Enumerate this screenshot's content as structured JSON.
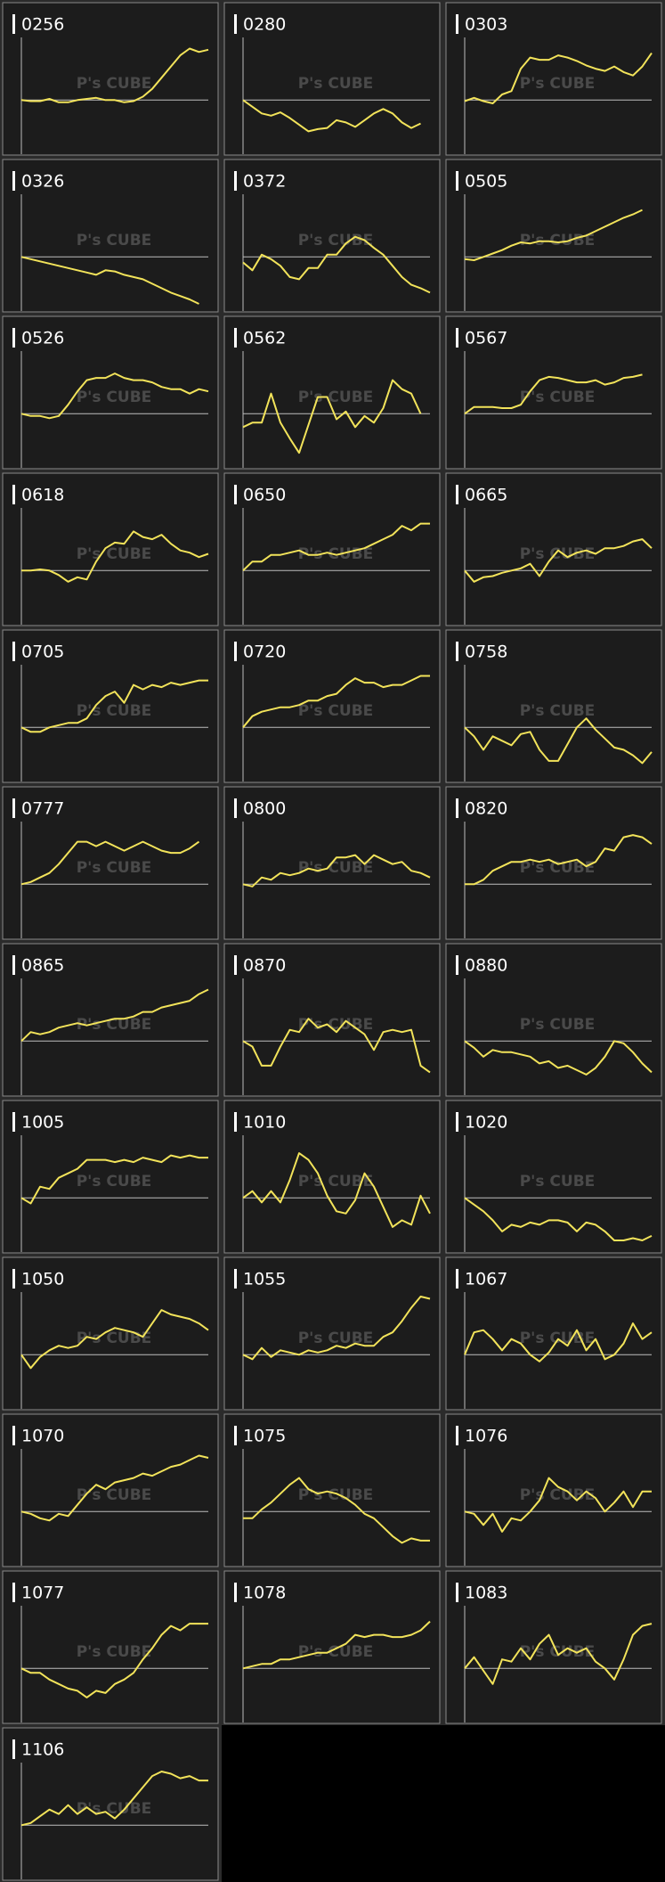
{
  "watermark": "P's CUBE",
  "chart_data": [
    {
      "type": "line",
      "title": "0256",
      "color": "#f2e35a",
      "xlim": [
        0,
        20
      ],
      "ylim": [
        -46,
        56
      ],
      "values": [
        0,
        -1,
        -1,
        1,
        -2,
        -2,
        0,
        1,
        2,
        0,
        0,
        -2,
        -1,
        3,
        10,
        20,
        30,
        40,
        46,
        43,
        45
      ]
    },
    {
      "type": "line",
      "title": "0280",
      "color": "#f2e35a",
      "xlim": [
        0,
        20
      ],
      "ylim": [
        -46,
        56
      ],
      "values": [
        0,
        -6,
        -12,
        -14,
        -11,
        -16,
        -22,
        -28,
        -26,
        -25,
        -18,
        -20,
        -24,
        -18,
        -12,
        -8,
        -12,
        -20,
        -25,
        -21
      ]
    },
    {
      "type": "line",
      "title": "0303",
      "color": "#f2e35a",
      "xlim": [
        0,
        20
      ],
      "ylim": [
        -46,
        56
      ],
      "values": [
        -1,
        2,
        -1,
        -3,
        5,
        8,
        28,
        38,
        36,
        36,
        40,
        38,
        35,
        31,
        28,
        26,
        30,
        25,
        22,
        30,
        42
      ]
    },
    {
      "type": "line",
      "title": "0326",
      "color": "#f2e35a",
      "xlim": [
        0,
        20
      ],
      "ylim": [
        -46,
        56
      ],
      "values": [
        0,
        -2,
        -4,
        -6,
        -8,
        -10,
        -12,
        -14,
        -16,
        -12,
        -13,
        -16,
        -18,
        -20,
        -24,
        -28,
        -32,
        -35,
        -38,
        -42
      ]
    },
    {
      "type": "line",
      "title": "0372",
      "color": "#f2e35a",
      "xlim": [
        0,
        20
      ],
      "ylim": [
        -46,
        56
      ],
      "values": [
        -5,
        -12,
        2,
        -2,
        -8,
        -18,
        -20,
        -10,
        -10,
        2,
        2,
        12,
        18,
        15,
        8,
        2,
        -8,
        -18,
        -25,
        -28,
        -32
      ]
    },
    {
      "type": "line",
      "title": "0505",
      "color": "#f2e35a",
      "xlim": [
        0,
        20
      ],
      "ylim": [
        -46,
        56
      ],
      "values": [
        -2,
        -3,
        0,
        3,
        6,
        10,
        13,
        12,
        14,
        14,
        13,
        14,
        17,
        19,
        23,
        27,
        31,
        35,
        38,
        42
      ]
    },
    {
      "type": "line",
      "title": "0526",
      "color": "#f2e35a",
      "xlim": [
        0,
        20
      ],
      "ylim": [
        -46,
        56
      ],
      "values": [
        0,
        -2,
        -2,
        -4,
        -2,
        8,
        20,
        30,
        32,
        32,
        36,
        32,
        30,
        30,
        28,
        24,
        22,
        22,
        18,
        22,
        20
      ]
    },
    {
      "type": "line",
      "title": "0562",
      "color": "#f2e35a",
      "xlim": [
        0,
        20
      ],
      "ylim": [
        -46,
        56
      ],
      "values": [
        -12,
        -8,
        -8,
        18,
        -8,
        -22,
        -35,
        -10,
        15,
        15,
        -5,
        2,
        -12,
        -2,
        -8,
        5,
        30,
        22,
        18,
        0
      ]
    },
    {
      "type": "line",
      "title": "0567",
      "color": "#f2e35a",
      "xlim": [
        0,
        20
      ],
      "ylim": [
        -46,
        56
      ],
      "values": [
        0,
        6,
        6,
        6,
        5,
        5,
        8,
        20,
        30,
        33,
        32,
        30,
        28,
        28,
        30,
        26,
        28,
        32,
        33,
        35
      ]
    },
    {
      "type": "line",
      "title": "0618",
      "color": "#f2e35a",
      "xlim": [
        0,
        20
      ],
      "ylim": [
        -46,
        56
      ],
      "values": [
        0,
        0,
        1,
        0,
        -4,
        -10,
        -6,
        -8,
        8,
        20,
        25,
        24,
        35,
        30,
        28,
        32,
        24,
        18,
        16,
        12,
        15
      ]
    },
    {
      "type": "line",
      "title": "0650",
      "color": "#f2e35a",
      "xlim": [
        0,
        20
      ],
      "ylim": [
        -46,
        56
      ],
      "values": [
        0,
        8,
        8,
        14,
        14,
        16,
        18,
        14,
        14,
        16,
        14,
        16,
        18,
        20,
        24,
        28,
        32,
        40,
        36,
        42,
        42
      ]
    },
    {
      "type": "line",
      "title": "0665",
      "color": "#f2e35a",
      "xlim": [
        0,
        20
      ],
      "ylim": [
        -46,
        56
      ],
      "values": [
        0,
        -10,
        -6,
        -5,
        -2,
        0,
        2,
        6,
        -5,
        8,
        18,
        12,
        16,
        18,
        15,
        20,
        20,
        22,
        26,
        28,
        20
      ]
    },
    {
      "type": "line",
      "title": "0705",
      "color": "#f2e35a",
      "xlim": [
        0,
        20
      ],
      "ylim": [
        -46,
        56
      ],
      "values": [
        0,
        -4,
        -4,
        0,
        2,
        4,
        4,
        8,
        20,
        28,
        32,
        22,
        38,
        34,
        38,
        36,
        40,
        38,
        40,
        42,
        42
      ]
    },
    {
      "type": "line",
      "title": "0720",
      "color": "#f2e35a",
      "xlim": [
        0,
        20
      ],
      "ylim": [
        -46,
        56
      ],
      "values": [
        0,
        10,
        14,
        16,
        18,
        18,
        20,
        24,
        24,
        28,
        30,
        38,
        44,
        40,
        40,
        36,
        38,
        38,
        42,
        46,
        46
      ]
    },
    {
      "type": "line",
      "title": "0758",
      "color": "#f2e35a",
      "xlim": [
        0,
        20
      ],
      "ylim": [
        -46,
        56
      ],
      "values": [
        0,
        -8,
        -20,
        -8,
        -12,
        -16,
        -6,
        -4,
        -20,
        -30,
        -30,
        -15,
        0,
        8,
        -2,
        -10,
        -18,
        -20,
        -25,
        -32,
        -22
      ]
    },
    {
      "type": "line",
      "title": "0777",
      "color": "#f2e35a",
      "xlim": [
        0,
        20
      ],
      "ylim": [
        -46,
        56
      ],
      "values": [
        0,
        2,
        6,
        10,
        18,
        28,
        38,
        38,
        34,
        38,
        34,
        30,
        34,
        38,
        34,
        30,
        28,
        28,
        32,
        38
      ]
    },
    {
      "type": "line",
      "title": "0800",
      "color": "#f2e35a",
      "xlim": [
        0,
        20
      ],
      "ylim": [
        -46,
        56
      ],
      "values": [
        0,
        -2,
        6,
        4,
        10,
        8,
        10,
        14,
        12,
        14,
        24,
        24,
        26,
        18,
        26,
        22,
        18,
        20,
        12,
        10,
        6
      ]
    },
    {
      "type": "line",
      "title": "0820",
      "color": "#f2e35a",
      "xlim": [
        0,
        20
      ],
      "ylim": [
        -46,
        56
      ],
      "values": [
        0,
        0,
        4,
        12,
        16,
        20,
        20,
        22,
        20,
        22,
        18,
        20,
        22,
        16,
        20,
        32,
        30,
        42,
        44,
        42,
        36
      ]
    },
    {
      "type": "line",
      "title": "0865",
      "color": "#f2e35a",
      "xlim": [
        0,
        20
      ],
      "ylim": [
        -46,
        56
      ],
      "values": [
        0,
        8,
        6,
        8,
        12,
        14,
        16,
        14,
        16,
        18,
        20,
        20,
        22,
        26,
        26,
        30,
        32,
        34,
        36,
        42,
        46
      ]
    },
    {
      "type": "line",
      "title": "0870",
      "color": "#f2e35a",
      "xlim": [
        0,
        20
      ],
      "ylim": [
        -46,
        56
      ],
      "values": [
        0,
        -5,
        -22,
        -22,
        -5,
        10,
        8,
        20,
        12,
        15,
        8,
        18,
        12,
        6,
        -8,
        8,
        10,
        8,
        10,
        -22,
        -28
      ]
    },
    {
      "type": "line",
      "title": "0880",
      "color": "#f2e35a",
      "xlim": [
        0,
        20
      ],
      "ylim": [
        -46,
        56
      ],
      "values": [
        0,
        -6,
        -14,
        -8,
        -10,
        -10,
        -12,
        -14,
        -20,
        -18,
        -24,
        -22,
        -26,
        -30,
        -24,
        -14,
        0,
        -2,
        -10,
        -20,
        -28
      ]
    },
    {
      "type": "line",
      "title": "1005",
      "color": "#f2e35a",
      "xlim": [
        0,
        20
      ],
      "ylim": [
        -46,
        56
      ],
      "values": [
        0,
        -5,
        10,
        8,
        18,
        22,
        26,
        34,
        34,
        34,
        32,
        34,
        32,
        36,
        34,
        32,
        38,
        36,
        38,
        36,
        36
      ]
    },
    {
      "type": "line",
      "title": "1010",
      "color": "#f2e35a",
      "xlim": [
        0,
        20
      ],
      "ylim": [
        -46,
        56
      ],
      "values": [
        0,
        6,
        -4,
        6,
        -4,
        16,
        40,
        34,
        22,
        2,
        -12,
        -14,
        -2,
        22,
        10,
        -8,
        -26,
        -20,
        -24,
        2,
        -14
      ]
    },
    {
      "type": "line",
      "title": "1020",
      "color": "#f2e35a",
      "xlim": [
        0,
        20
      ],
      "ylim": [
        -46,
        56
      ],
      "values": [
        0,
        -6,
        -12,
        -20,
        -30,
        -24,
        -26,
        -22,
        -24,
        -20,
        -20,
        -22,
        -30,
        -22,
        -24,
        -30,
        -38,
        -38,
        -36,
        -38,
        -34
      ]
    },
    {
      "type": "line",
      "title": "1050",
      "color": "#f2e35a",
      "xlim": [
        0,
        20
      ],
      "ylim": [
        -46,
        56
      ],
      "values": [
        0,
        -12,
        -2,
        4,
        8,
        6,
        8,
        16,
        14,
        20,
        24,
        22,
        20,
        16,
        28,
        40,
        36,
        34,
        32,
        28,
        22
      ]
    },
    {
      "type": "line",
      "title": "1055",
      "color": "#f2e35a",
      "xlim": [
        0,
        20
      ],
      "ylim": [
        -46,
        56
      ],
      "values": [
        0,
        -4,
        6,
        -2,
        4,
        2,
        0,
        4,
        2,
        4,
        8,
        6,
        10,
        8,
        8,
        16,
        20,
        30,
        42,
        52,
        50
      ]
    },
    {
      "type": "line",
      "title": "1067",
      "color": "#f2e35a",
      "xlim": [
        0,
        20
      ],
      "ylim": [
        -46,
        56
      ],
      "values": [
        0,
        20,
        22,
        14,
        4,
        14,
        10,
        0,
        -6,
        2,
        14,
        8,
        22,
        4,
        14,
        -4,
        0,
        10,
        28,
        14,
        20
      ]
    },
    {
      "type": "line",
      "title": "1070",
      "color": "#f2e35a",
      "xlim": [
        0,
        20
      ],
      "ylim": [
        -46,
        56
      ],
      "values": [
        0,
        -2,
        -6,
        -8,
        -2,
        -4,
        6,
        16,
        24,
        20,
        26,
        28,
        30,
        34,
        32,
        36,
        40,
        42,
        46,
        50,
        48
      ]
    },
    {
      "type": "line",
      "title": "1075",
      "color": "#f2e35a",
      "xlim": [
        0,
        20
      ],
      "ylim": [
        -46,
        56
      ],
      "values": [
        -6,
        -6,
        2,
        8,
        16,
        24,
        30,
        20,
        16,
        18,
        16,
        12,
        6,
        -2,
        -6,
        -14,
        -22,
        -28,
        -24,
        -26,
        -26
      ]
    },
    {
      "type": "line",
      "title": "1076",
      "color": "#f2e35a",
      "xlim": [
        0,
        20
      ],
      "ylim": [
        -46,
        56
      ],
      "values": [
        0,
        -2,
        -12,
        -2,
        -18,
        -6,
        -8,
        0,
        10,
        30,
        22,
        18,
        10,
        18,
        12,
        0,
        8,
        18,
        4,
        18,
        18
      ]
    },
    {
      "type": "line",
      "title": "1077",
      "color": "#f2e35a",
      "xlim": [
        0,
        20
      ],
      "ylim": [
        -46,
        56
      ],
      "values": [
        0,
        -4,
        -4,
        -10,
        -14,
        -18,
        -20,
        -26,
        -20,
        -22,
        -14,
        -10,
        -4,
        8,
        18,
        30,
        38,
        34,
        40,
        40,
        40
      ]
    },
    {
      "type": "line",
      "title": "1078",
      "color": "#f2e35a",
      "xlim": [
        0,
        20
      ],
      "ylim": [
        -46,
        56
      ],
      "values": [
        0,
        2,
        4,
        4,
        8,
        8,
        10,
        12,
        14,
        14,
        18,
        22,
        30,
        28,
        30,
        30,
        28,
        28,
        30,
        34,
        42
      ]
    },
    {
      "type": "line",
      "title": "1083",
      "color": "#f2e35a",
      "xlim": [
        0,
        20
      ],
      "ylim": [
        -46,
        56
      ],
      "values": [
        0,
        10,
        -2,
        -14,
        8,
        6,
        18,
        8,
        22,
        30,
        12,
        18,
        14,
        18,
        6,
        0,
        -10,
        8,
        30,
        38,
        40
      ]
    },
    {
      "type": "line",
      "title": "1106",
      "color": "#f2e35a",
      "xlim": [
        0,
        20
      ],
      "ylim": [
        -46,
        56
      ],
      "values": [
        0,
        2,
        8,
        14,
        10,
        18,
        10,
        16,
        10,
        12,
        6,
        14,
        24,
        34,
        44,
        48,
        46,
        42,
        44,
        40,
        40
      ]
    }
  ]
}
